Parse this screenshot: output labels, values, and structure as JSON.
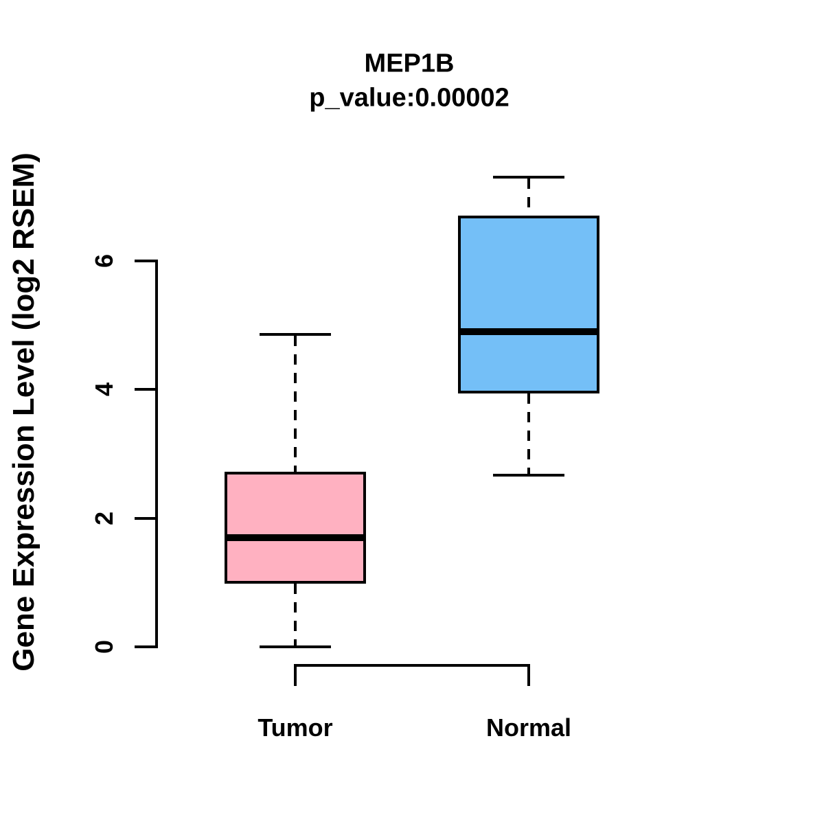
{
  "chart_data": {
    "type": "boxplot",
    "title": "MEP1B",
    "subtitle": "p_value:0.00002",
    "ylabel": "Gene Expression Level (log2 RSEM)",
    "xlabel": "",
    "yticks": [
      0,
      2,
      4,
      6
    ],
    "ylim": [
      0,
      7.3
    ],
    "grid": false,
    "legend": "none",
    "axis_color": "#000000",
    "text_color": "#000000",
    "background_color": "#ffffff",
    "groups": [
      {
        "label": "Tumor",
        "fill_color": "#FFB1C1",
        "border_color": "#000000",
        "whisker_low": 0.0,
        "q1": 1.0,
        "median": 1.7,
        "q3": 2.7,
        "whisker_high": 4.86
      },
      {
        "label": "Normal",
        "fill_color": "#74BFF7",
        "border_color": "#000000",
        "whisker_low": 2.67,
        "q1": 3.96,
        "median": 4.9,
        "q3": 6.68,
        "whisker_high": 7.3
      }
    ]
  }
}
